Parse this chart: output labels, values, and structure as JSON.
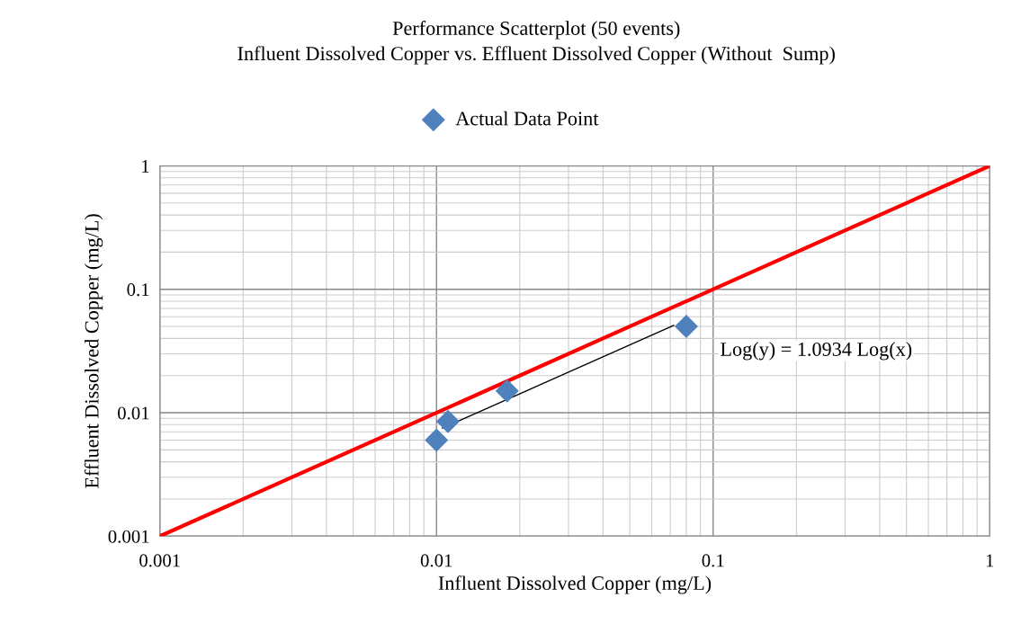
{
  "chart_data": {
    "type": "scatter",
    "title": "Performance Scatterplot (50 events)",
    "subtitle": "Influent Dissolved Copper vs. Effluent Dissolved Copper (Without  Sump)",
    "xlabel": "Influent Dissolved Copper (mg/L)",
    "ylabel": "Effluent Dissolved Copper (mg/L)",
    "series": [
      {
        "name": "Actual Data Point",
        "color": "#4f81bd",
        "marker": "diamond",
        "x": [
          0.01,
          0.011,
          0.018,
          0.08
        ],
        "values": [
          0.006,
          0.0085,
          0.015,
          0.05
        ]
      },
      {
        "type": "line",
        "color": "#000000",
        "marker": "none",
        "x": [
          0.0105,
          0.072
        ],
        "values": [
          0.0075,
          0.051
        ]
      },
      {
        "type": "line",
        "color": "#ff0000",
        "marker": "none",
        "x": [
          0.001,
          1
        ],
        "values": [
          0.001,
          1
        ]
      }
    ],
    "log": "xy",
    "xlim": [
      0.001,
      1
    ],
    "ylim": [
      0.001,
      1
    ],
    "xticks": [
      0.001,
      0.01,
      0.1,
      1
    ],
    "yticks": [
      0.001,
      0.01,
      0.1,
      1
    ],
    "grid": true,
    "legend": "top",
    "line_style": "solid",
    "annotations": [
      "Log(y) = 1.0934 Log(x)"
    ]
  }
}
